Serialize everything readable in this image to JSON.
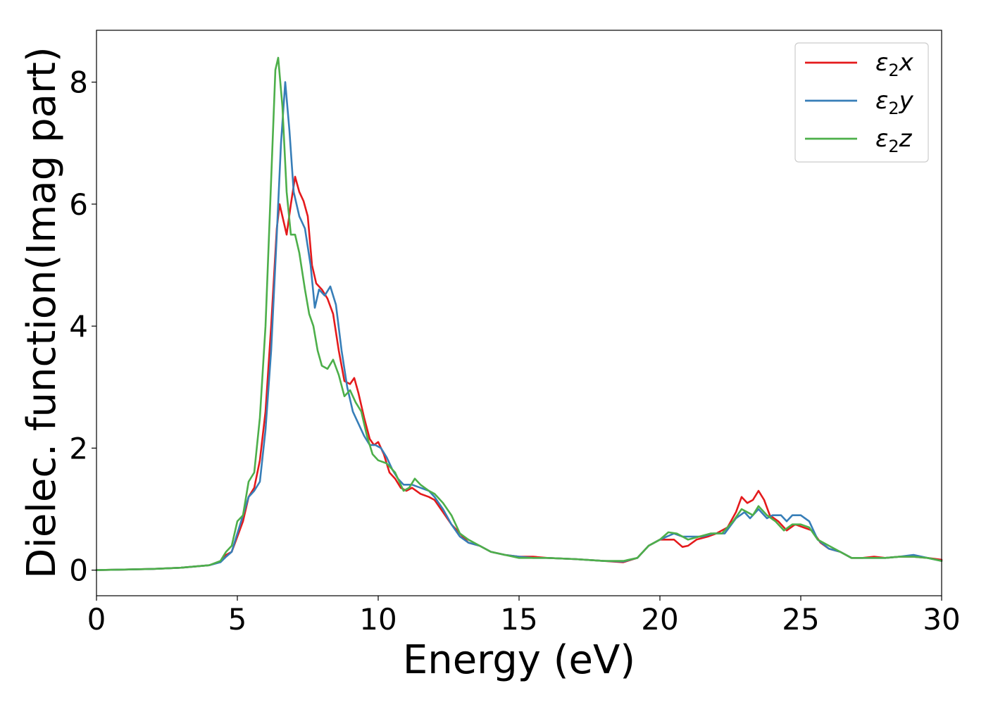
{
  "chart_data": {
    "type": "line",
    "title": "",
    "xlabel": "Energy (eV)",
    "ylabel": "Dielec. function(Imag part)",
    "xlim": [
      0,
      30
    ],
    "ylim": [
      -0.42,
      8.85
    ],
    "xticks": [
      0,
      5,
      10,
      15,
      20,
      25,
      30
    ],
    "yticks": [
      0,
      2,
      4,
      6,
      8
    ],
    "grid": false,
    "legend_position": "top-right",
    "series": [
      {
        "name": "ε₂x",
        "legend": {
          "base": "ε",
          "sub": "2",
          "var": "x"
        },
        "color": "#e41a1c",
        "points": [
          [
            0,
            0
          ],
          [
            1,
            0.01
          ],
          [
            2,
            0.02
          ],
          [
            3,
            0.04
          ],
          [
            4,
            0.08
          ],
          [
            4.4,
            0.14
          ],
          [
            4.6,
            0.25
          ],
          [
            4.8,
            0.3
          ],
          [
            5.0,
            0.55
          ],
          [
            5.2,
            0.8
          ],
          [
            5.4,
            1.2
          ],
          [
            5.6,
            1.35
          ],
          [
            5.8,
            1.8
          ],
          [
            6.0,
            2.6
          ],
          [
            6.2,
            4.0
          ],
          [
            6.4,
            5.6
          ],
          [
            6.5,
            6.0
          ],
          [
            6.6,
            5.8
          ],
          [
            6.75,
            5.5
          ],
          [
            6.9,
            6.0
          ],
          [
            7.05,
            6.45
          ],
          [
            7.2,
            6.2
          ],
          [
            7.35,
            6.05
          ],
          [
            7.5,
            5.8
          ],
          [
            7.65,
            5.0
          ],
          [
            7.8,
            4.7
          ],
          [
            8.0,
            4.6
          ],
          [
            8.2,
            4.45
          ],
          [
            8.4,
            4.2
          ],
          [
            8.6,
            3.6
          ],
          [
            8.8,
            3.1
          ],
          [
            9.0,
            3.05
          ],
          [
            9.15,
            3.15
          ],
          [
            9.3,
            2.9
          ],
          [
            9.5,
            2.5
          ],
          [
            9.7,
            2.15
          ],
          [
            9.85,
            2.05
          ],
          [
            10.0,
            2.1
          ],
          [
            10.2,
            1.9
          ],
          [
            10.4,
            1.6
          ],
          [
            10.6,
            1.5
          ],
          [
            10.8,
            1.35
          ],
          [
            11.0,
            1.3
          ],
          [
            11.2,
            1.35
          ],
          [
            11.5,
            1.25
          ],
          [
            11.8,
            1.2
          ],
          [
            12.0,
            1.15
          ],
          [
            12.3,
            0.95
          ],
          [
            12.6,
            0.75
          ],
          [
            12.9,
            0.6
          ],
          [
            13.2,
            0.45
          ],
          [
            13.6,
            0.4
          ],
          [
            14.0,
            0.3
          ],
          [
            14.5,
            0.25
          ],
          [
            15.0,
            0.22
          ],
          [
            15.5,
            0.22
          ],
          [
            16.0,
            0.2
          ],
          [
            17.0,
            0.18
          ],
          [
            18.0,
            0.15
          ],
          [
            18.7,
            0.13
          ],
          [
            19.2,
            0.2
          ],
          [
            19.6,
            0.4
          ],
          [
            20.0,
            0.5
          ],
          [
            20.5,
            0.5
          ],
          [
            20.8,
            0.38
          ],
          [
            21.0,
            0.4
          ],
          [
            21.3,
            0.5
          ],
          [
            21.7,
            0.55
          ],
          [
            22.0,
            0.6
          ],
          [
            22.4,
            0.7
          ],
          [
            22.7,
            0.95
          ],
          [
            22.9,
            1.2
          ],
          [
            23.1,
            1.1
          ],
          [
            23.3,
            1.15
          ],
          [
            23.5,
            1.3
          ],
          [
            23.7,
            1.15
          ],
          [
            23.9,
            0.9
          ],
          [
            24.2,
            0.8
          ],
          [
            24.5,
            0.65
          ],
          [
            24.8,
            0.75
          ],
          [
            25.1,
            0.7
          ],
          [
            25.4,
            0.65
          ],
          [
            25.7,
            0.45
          ],
          [
            26.0,
            0.35
          ],
          [
            26.4,
            0.3
          ],
          [
            26.8,
            0.2
          ],
          [
            27.2,
            0.2
          ],
          [
            27.6,
            0.22
          ],
          [
            28.0,
            0.2
          ],
          [
            28.5,
            0.22
          ],
          [
            29.0,
            0.22
          ],
          [
            29.5,
            0.2
          ],
          [
            30.0,
            0.17
          ]
        ]
      },
      {
        "name": "ε₂y",
        "legend": {
          "base": "ε",
          "sub": "2",
          "var": "y"
        },
        "color": "#377eb8",
        "points": [
          [
            0,
            0
          ],
          [
            1,
            0.01
          ],
          [
            2,
            0.02
          ],
          [
            3,
            0.04
          ],
          [
            4,
            0.08
          ],
          [
            4.4,
            0.13
          ],
          [
            4.6,
            0.22
          ],
          [
            4.8,
            0.3
          ],
          [
            5.0,
            0.6
          ],
          [
            5.2,
            0.9
          ],
          [
            5.4,
            1.2
          ],
          [
            5.6,
            1.3
          ],
          [
            5.8,
            1.45
          ],
          [
            6.0,
            2.3
          ],
          [
            6.2,
            3.6
          ],
          [
            6.4,
            5.5
          ],
          [
            6.55,
            7.0
          ],
          [
            6.7,
            8.0
          ],
          [
            6.85,
            7.2
          ],
          [
            7.0,
            6.2
          ],
          [
            7.2,
            5.8
          ],
          [
            7.4,
            5.6
          ],
          [
            7.6,
            5.0
          ],
          [
            7.75,
            4.3
          ],
          [
            7.9,
            4.6
          ],
          [
            8.1,
            4.5
          ],
          [
            8.3,
            4.65
          ],
          [
            8.5,
            4.35
          ],
          [
            8.7,
            3.6
          ],
          [
            8.9,
            3.0
          ],
          [
            9.1,
            2.6
          ],
          [
            9.3,
            2.4
          ],
          [
            9.5,
            2.2
          ],
          [
            9.7,
            2.05
          ],
          [
            9.9,
            2.05
          ],
          [
            10.1,
            2.0
          ],
          [
            10.3,
            1.85
          ],
          [
            10.5,
            1.65
          ],
          [
            10.7,
            1.5
          ],
          [
            10.9,
            1.4
          ],
          [
            11.2,
            1.4
          ],
          [
            11.5,
            1.35
          ],
          [
            11.8,
            1.3
          ],
          [
            12.0,
            1.2
          ],
          [
            12.3,
            1.0
          ],
          [
            12.6,
            0.75
          ],
          [
            12.9,
            0.55
          ],
          [
            13.2,
            0.45
          ],
          [
            13.6,
            0.4
          ],
          [
            14.0,
            0.3
          ],
          [
            14.5,
            0.25
          ],
          [
            15.0,
            0.22
          ],
          [
            15.5,
            0.2
          ],
          [
            16.0,
            0.2
          ],
          [
            17.0,
            0.18
          ],
          [
            18.0,
            0.15
          ],
          [
            18.7,
            0.14
          ],
          [
            19.2,
            0.2
          ],
          [
            19.6,
            0.4
          ],
          [
            20.0,
            0.5
          ],
          [
            20.5,
            0.6
          ],
          [
            20.8,
            0.55
          ],
          [
            21.1,
            0.55
          ],
          [
            21.5,
            0.55
          ],
          [
            21.9,
            0.6
          ],
          [
            22.3,
            0.6
          ],
          [
            22.7,
            0.85
          ],
          [
            23.0,
            0.95
          ],
          [
            23.2,
            0.85
          ],
          [
            23.5,
            1.0
          ],
          [
            23.8,
            0.85
          ],
          [
            24.0,
            0.9
          ],
          [
            24.3,
            0.9
          ],
          [
            24.5,
            0.8
          ],
          [
            24.7,
            0.9
          ],
          [
            25.0,
            0.9
          ],
          [
            25.3,
            0.8
          ],
          [
            25.6,
            0.5
          ],
          [
            26.0,
            0.35
          ],
          [
            26.4,
            0.3
          ],
          [
            26.8,
            0.2
          ],
          [
            27.2,
            0.2
          ],
          [
            27.6,
            0.2
          ],
          [
            28.0,
            0.2
          ],
          [
            28.5,
            0.22
          ],
          [
            29.0,
            0.25
          ],
          [
            29.5,
            0.2
          ],
          [
            30.0,
            0.15
          ]
        ]
      },
      {
        "name": "ε₂z",
        "legend": {
          "base": "ε",
          "sub": "2",
          "var": "z"
        },
        "color": "#4daf4a",
        "points": [
          [
            0,
            0
          ],
          [
            1,
            0.01
          ],
          [
            2,
            0.02
          ],
          [
            3,
            0.04
          ],
          [
            4,
            0.08
          ],
          [
            4.4,
            0.15
          ],
          [
            4.6,
            0.3
          ],
          [
            4.8,
            0.4
          ],
          [
            5.0,
            0.8
          ],
          [
            5.2,
            0.9
          ],
          [
            5.4,
            1.45
          ],
          [
            5.6,
            1.6
          ],
          [
            5.8,
            2.5
          ],
          [
            6.0,
            4.0
          ],
          [
            6.2,
            6.4
          ],
          [
            6.35,
            8.2
          ],
          [
            6.45,
            8.4
          ],
          [
            6.6,
            7.6
          ],
          [
            6.75,
            6.2
          ],
          [
            6.9,
            5.5
          ],
          [
            7.05,
            5.5
          ],
          [
            7.2,
            5.2
          ],
          [
            7.4,
            4.6
          ],
          [
            7.55,
            4.2
          ],
          [
            7.7,
            4.0
          ],
          [
            7.85,
            3.6
          ],
          [
            8.0,
            3.35
          ],
          [
            8.2,
            3.3
          ],
          [
            8.4,
            3.45
          ],
          [
            8.6,
            3.2
          ],
          [
            8.8,
            2.85
          ],
          [
            9.0,
            2.95
          ],
          [
            9.2,
            2.75
          ],
          [
            9.4,
            2.6
          ],
          [
            9.6,
            2.2
          ],
          [
            9.8,
            1.9
          ],
          [
            10.0,
            1.8
          ],
          [
            10.3,
            1.75
          ],
          [
            10.6,
            1.6
          ],
          [
            10.9,
            1.3
          ],
          [
            11.1,
            1.35
          ],
          [
            11.3,
            1.5
          ],
          [
            11.5,
            1.4
          ],
          [
            11.8,
            1.3
          ],
          [
            12.0,
            1.25
          ],
          [
            12.3,
            1.1
          ],
          [
            12.6,
            0.9
          ],
          [
            12.9,
            0.6
          ],
          [
            13.2,
            0.5
          ],
          [
            13.6,
            0.4
          ],
          [
            14.0,
            0.3
          ],
          [
            14.5,
            0.25
          ],
          [
            15.0,
            0.2
          ],
          [
            15.5,
            0.2
          ],
          [
            16.0,
            0.2
          ],
          [
            17.0,
            0.18
          ],
          [
            18.0,
            0.15
          ],
          [
            18.7,
            0.15
          ],
          [
            19.2,
            0.2
          ],
          [
            19.6,
            0.4
          ],
          [
            20.0,
            0.5
          ],
          [
            20.3,
            0.62
          ],
          [
            20.6,
            0.6
          ],
          [
            21.0,
            0.5
          ],
          [
            21.4,
            0.55
          ],
          [
            21.8,
            0.6
          ],
          [
            22.2,
            0.6
          ],
          [
            22.6,
            0.8
          ],
          [
            22.9,
            1.0
          ],
          [
            23.1,
            0.95
          ],
          [
            23.3,
            0.9
          ],
          [
            23.5,
            1.05
          ],
          [
            23.8,
            0.9
          ],
          [
            24.1,
            0.8
          ],
          [
            24.4,
            0.65
          ],
          [
            24.7,
            0.75
          ],
          [
            25.0,
            0.75
          ],
          [
            25.3,
            0.7
          ],
          [
            25.6,
            0.5
          ],
          [
            26.0,
            0.4
          ],
          [
            26.4,
            0.3
          ],
          [
            26.8,
            0.2
          ],
          [
            27.2,
            0.2
          ],
          [
            27.6,
            0.2
          ],
          [
            28.0,
            0.2
          ],
          [
            28.5,
            0.22
          ],
          [
            29.0,
            0.22
          ],
          [
            29.5,
            0.2
          ],
          [
            30.0,
            0.15
          ]
        ]
      }
    ]
  }
}
